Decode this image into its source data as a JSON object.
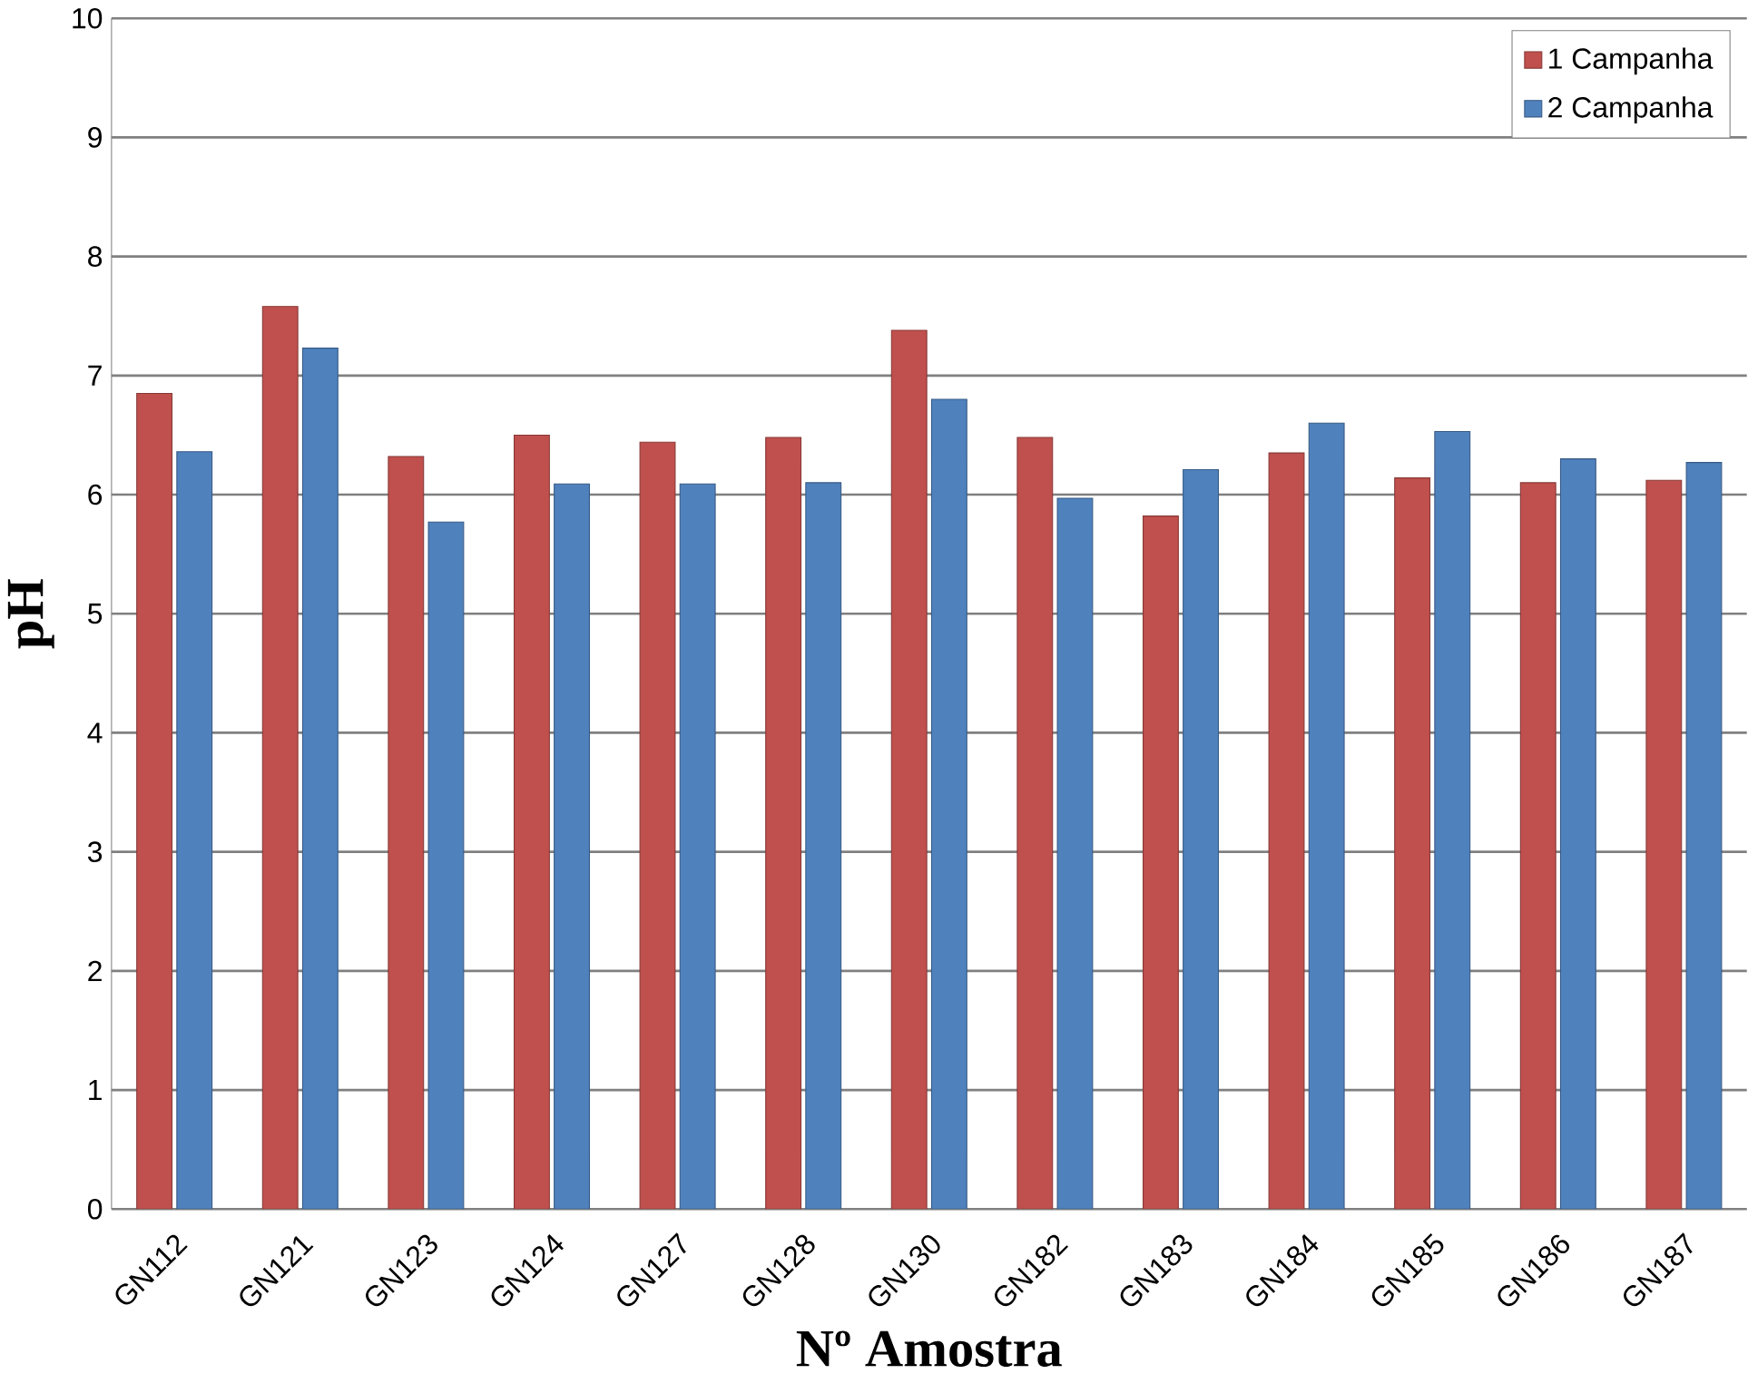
{
  "chart_data": {
    "type": "bar",
    "xlabel": "Nº Amostra",
    "ylabel": "pH",
    "categories": [
      "GN112",
      "GN121",
      "GN123",
      "GN124",
      "GN127",
      "GN128",
      "GN130",
      "GN182",
      "GN183",
      "GN184",
      "GN185",
      "GN186",
      "GN187"
    ],
    "series": [
      {
        "name": "1 Campanha",
        "color": "#c0504d",
        "values": [
          6.85,
          7.58,
          6.32,
          6.5,
          6.44,
          6.48,
          7.38,
          6.48,
          5.82,
          6.35,
          6.14,
          6.1,
          6.12
        ]
      },
      {
        "name": "2 Campanha",
        "color": "#4f81bd",
        "values": [
          6.36,
          7.23,
          5.77,
          6.09,
          6.09,
          6.1,
          6.8,
          5.97,
          6.21,
          6.6,
          6.53,
          6.3,
          6.27
        ]
      }
    ],
    "ylim": [
      0,
      10
    ],
    "yticks": [
      0,
      1,
      2,
      3,
      4,
      5,
      6,
      7,
      8,
      9,
      10
    ],
    "grid": "y",
    "legend": "top right"
  }
}
